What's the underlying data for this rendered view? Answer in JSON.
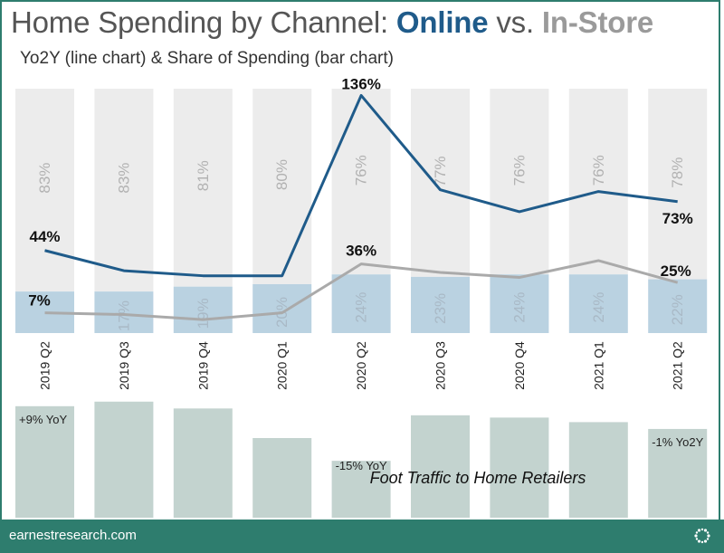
{
  "header": {
    "title_prefix": "Home Spending by Channel: ",
    "title_online": "Online",
    "title_vs": " vs. ",
    "title_instore": "In-Store",
    "subtitle": "Yo2Y (line chart) & Share of Spending (bar chart)"
  },
  "footer": {
    "site": "earnestresearch.com",
    "logo_icon": "sunburst-logo-icon"
  },
  "colors": {
    "online": "#1f5b8a",
    "instore": "#aaaaaa",
    "bar_instore": "#ececec",
    "bar_online": "#bad2e1",
    "traffic_bar": "#c3d3cf",
    "brand": "#2e7d6e"
  },
  "chart_data": [
    {
      "type": "bar",
      "stacked": true,
      "categories": [
        "2019 Q2",
        "2019 Q3",
        "2019 Q4",
        "2020 Q1",
        "2020 Q2",
        "2020 Q3",
        "2020 Q4",
        "2021 Q1",
        "2021 Q2"
      ],
      "series": [
        {
          "values": [
            17,
            17,
            19,
            20,
            24,
            23,
            24,
            24,
            22
          ],
          "labels": [
            "",
            "17%",
            "19%",
            "20%",
            "24%",
            "23%",
            "24%",
            "24%",
            "22%"
          ]
        },
        {
          "values": [
            83,
            83,
            81,
            80,
            76,
            77,
            76,
            76,
            78
          ],
          "labels": [
            "83%",
            "83%",
            "81%",
            "80%",
            "76%",
            "77%",
            "76%",
            "76%",
            "78%"
          ]
        }
      ],
      "ylim": [
        0,
        100
      ]
    },
    {
      "type": "line",
      "categories": [
        "2019 Q2",
        "2019 Q3",
        "2019 Q4",
        "2020 Q1",
        "2020 Q2",
        "2020 Q3",
        "2020 Q4",
        "2021 Q1",
        "2021 Q2"
      ],
      "series": [
        {
          "values": [
            44,
            32,
            29,
            29,
            136,
            80,
            67,
            79,
            73
          ],
          "point_labels": [
            "44%",
            "",
            "",
            "",
            "136%",
            "",
            "",
            "",
            "73%"
          ]
        },
        {
          "values": [
            7,
            6,
            3,
            7,
            36,
            31,
            28,
            38,
            25
          ],
          "point_labels": [
            "7%",
            "",
            "",
            "",
            "36%",
            "",
            "",
            "",
            "25%"
          ]
        }
      ],
      "ylim": [
        -5,
        140
      ]
    },
    {
      "type": "bar",
      "title": "Foot Traffic to Home Retailers",
      "categories": [
        "2019 Q2",
        "2019 Q3",
        "2019 Q4",
        "2020 Q1",
        "2020 Q2",
        "2020 Q3",
        "2020 Q4",
        "2021 Q1",
        "2021 Q2"
      ],
      "values": [
        9,
        11,
        8,
        -5,
        -15,
        5,
        4,
        2,
        -1
      ],
      "value_labels": [
        "+9% YoY",
        "",
        "",
        "",
        "-15% YoY",
        "",
        "",
        "",
        "-1% Yo2Y"
      ]
    }
  ]
}
